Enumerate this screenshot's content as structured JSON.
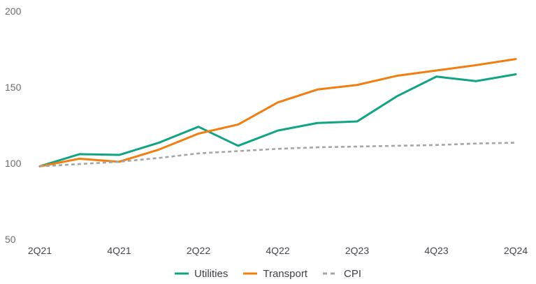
{
  "chart_data": {
    "type": "line",
    "title": "",
    "xlabel": "",
    "ylabel": "",
    "x_labels_all": [
      "2Q21",
      "3Q21",
      "4Q21",
      "1Q22",
      "2Q22",
      "3Q22",
      "4Q22",
      "1Q23",
      "2Q23",
      "3Q23",
      "4Q23",
      "1Q24",
      "2Q24"
    ],
    "x_tick_indices": [
      0,
      2,
      4,
      6,
      8,
      10,
      12
    ],
    "x_tick_labels": [
      "2Q21",
      "4Q21",
      "2Q22",
      "4Q22",
      "2Q23",
      "4Q23",
      "2Q24"
    ],
    "y_ticks": [
      200,
      150,
      100,
      50
    ],
    "ylim": [
      50,
      200
    ],
    "grid": false,
    "legend_position": "bottom-center",
    "series": [
      {
        "name": "Utilities",
        "color": "#10a485",
        "dash": "solid",
        "values": [
          98,
          106,
          105.5,
          113.5,
          124,
          111.5,
          121.5,
          126.5,
          127.5,
          144,
          157,
          154,
          158.5
        ]
      },
      {
        "name": "Transport",
        "color": "#f07e10",
        "dash": "solid",
        "values": [
          98,
          103,
          101,
          109,
          119.5,
          125.5,
          140,
          148.5,
          151.5,
          157.5,
          161,
          164.5,
          168.5
        ]
      },
      {
        "name": "CPI",
        "color": "#a5a5a5",
        "dash": "dashed",
        "values": [
          98,
          99.5,
          101,
          103.5,
          106.5,
          108,
          109.5,
          110.5,
          111,
          111.5,
          112,
          113,
          113.5
        ]
      }
    ]
  },
  "colors": {
    "background": "#ffffff",
    "y_tick_text": "#6b6b6b",
    "x_tick_text": "#43464d",
    "legend_text": "#3c3f45"
  }
}
